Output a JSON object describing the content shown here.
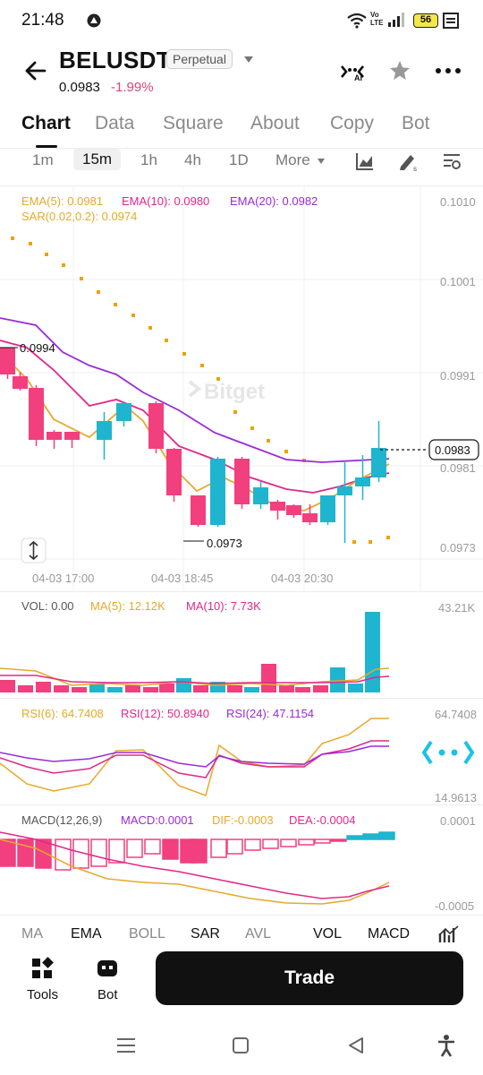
{
  "status_bar": {
    "time": "21:48",
    "battery": "56",
    "signal_label_top": "Vo",
    "signal_label_bottom": "LTE"
  },
  "header": {
    "symbol": "BELUSDT",
    "type_badge": "Perpetual",
    "last_price": "0.0983",
    "change_pct": "-1.99%",
    "ai_label": "AI"
  },
  "tabs": [
    {
      "label": "Chart"
    },
    {
      "label": "Data"
    },
    {
      "label": "Square"
    },
    {
      "label": "About"
    },
    {
      "label": "Copy"
    },
    {
      "label": "Bot"
    }
  ],
  "timeframes": {
    "options": [
      "1m",
      "15m",
      "1h",
      "4h",
      "1D",
      "More"
    ],
    "selected": "15m"
  },
  "main_chart": {
    "ema5": "EMA(5): 0.0981",
    "ema10": "EMA(10): 0.0980",
    "ema20": "EMA(20): 0.0982",
    "sar": "SAR(0.02,0.2): 0.0974",
    "price_labels": [
      "0.1010",
      "0.1001",
      "0.0991",
      "0.0981",
      "0.0973"
    ],
    "current_price": "0.0983",
    "high_marker": "0.0994",
    "low_marker": "0.0973",
    "time_labels": [
      "04-03 17:00",
      "04-03 18:45",
      "04-03 20:30"
    ],
    "watermark": "Bitget"
  },
  "volume_panel": {
    "vol": "VOL: 0.00",
    "ma5": "MA(5): 12.12K",
    "ma10": "MA(10): 7.73K",
    "max_label": "43.21K"
  },
  "rsi_panel": {
    "rsi6": "RSI(6): 64.7408",
    "rsi12": "RSI(12): 50.8940",
    "rsi24": "RSI(24): 47.1154",
    "top_label": "64.7408",
    "bottom_label": "14.9613"
  },
  "macd_panel": {
    "params": "MACD(12,26,9)",
    "macd": "MACD:0.0001",
    "dif": "DIF:-0.0003",
    "dea": "DEA:-0.0004",
    "top_label": "0.0001",
    "bottom_label": "-0.0005"
  },
  "indicator_tabs": [
    "MA",
    "EMA",
    "BOLL",
    "SAR",
    "AVL",
    "VOL",
    "MACD"
  ],
  "bottom_bar": {
    "tools_label": "Tools",
    "bot_label": "Bot",
    "trade_label": "Trade"
  },
  "colors": {
    "up": "#1fb5cf",
    "down": "#f23f7e",
    "ema5": "#e6a92c",
    "ema10": "#e0288a",
    "ema20": "#9a2bd6",
    "sar": "#f0a000"
  }
}
